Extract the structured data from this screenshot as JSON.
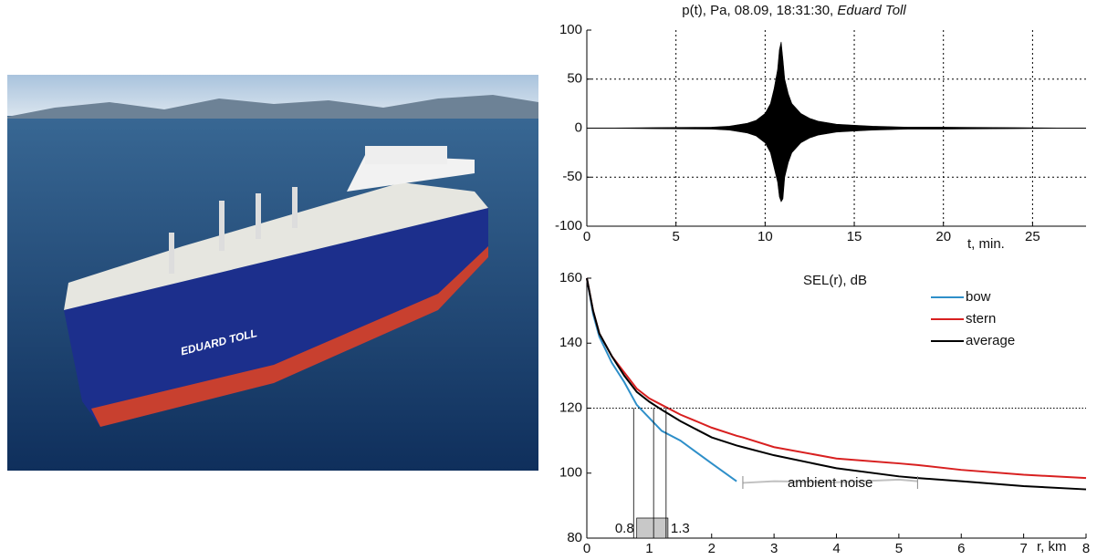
{
  "photo": {
    "hull_text": "EDUARD TOLL"
  },
  "chart_data": [
    {
      "type": "area",
      "title": "p(t), Pa, 08.09, 18:31:30,",
      "title_vessel": "Eduard Toll",
      "xlabel": "t, min.",
      "x": [
        0,
        7,
        8,
        9,
        9.5,
        10,
        10.3,
        10.5,
        10.7,
        10.8,
        10.9,
        11,
        11.1,
        11.3,
        11.5,
        12,
        12.5,
        13,
        14,
        15,
        16,
        18,
        20,
        28
      ],
      "series": [
        {
          "color": "#000000",
          "values": [
            0,
            1,
            2,
            5,
            8,
            15,
            25,
            40,
            60,
            80,
            88,
            70,
            50,
            35,
            25,
            15,
            10,
            7,
            4,
            3,
            2,
            1,
            1,
            0
          ]
        },
        {
          "color": "#000000",
          "values": [
            0,
            -1,
            -2,
            -5,
            -8,
            -15,
            -25,
            -40,
            -55,
            -70,
            -75,
            -72,
            -50,
            -35,
            -25,
            -15,
            -10,
            -7,
            -4,
            -3,
            -2,
            -1,
            -1,
            0
          ]
        }
      ],
      "xlim": [
        0,
        28
      ],
      "xticks": [
        0,
        5,
        10,
        15,
        20,
        25
      ],
      "ylim": [
        -100,
        100
      ],
      "yticks": [
        -100,
        -50,
        0,
        50,
        100
      ],
      "grid": true
    },
    {
      "type": "line",
      "title": "SEL(r), dB",
      "xlabel": "r, km",
      "x": [
        0,
        0.1,
        0.2,
        0.4,
        0.6,
        0.8,
        1,
        1.2,
        1.5,
        2,
        2.4,
        2.5,
        3,
        4,
        5,
        5.3,
        6,
        7,
        8
      ],
      "series": [
        {
          "name": "bow",
          "color": "#2e8fc9",
          "values": [
            160,
            149,
            142,
            134,
            128,
            121,
            117,
            113,
            110,
            103,
            97.5,
            null,
            null,
            null,
            null,
            null,
            null,
            null,
            null
          ]
        },
        {
          "name": "stern",
          "color": "#d82020",
          "values": [
            160,
            150,
            143,
            136,
            131,
            126,
            123,
            121,
            118,
            114,
            111.5,
            111,
            108,
            104.5,
            103,
            102.5,
            101,
            99.5,
            98.5
          ]
        },
        {
          "name": "average",
          "color": "#000000",
          "values": [
            160,
            150,
            143,
            136,
            130,
            125,
            122,
            119.5,
            116,
            111,
            108.5,
            108,
            105.5,
            101.5,
            99,
            98.5,
            97.5,
            96,
            95
          ]
        }
      ],
      "noise": {
        "label": "ambient noise",
        "color": "#c0c0c0",
        "x": [
          2.5,
          3,
          4,
          5,
          5.3
        ],
        "values": [
          97,
          97.5,
          97.2,
          98,
          97.5
        ]
      },
      "threshold": 120,
      "crossings": [
        0.75,
        1.07,
        1.27
      ],
      "range": [
        0.8,
        1.3
      ],
      "xlim": [
        0,
        8
      ],
      "xticks": [
        0,
        1,
        2,
        3,
        4,
        5,
        6,
        7,
        8
      ],
      "ylim": [
        80,
        160
      ],
      "yticks": [
        80,
        100,
        120,
        140,
        160
      ]
    }
  ]
}
